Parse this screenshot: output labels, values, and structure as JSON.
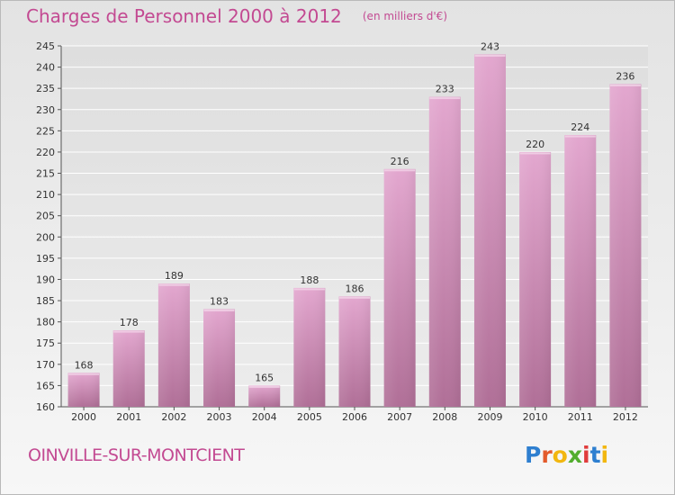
{
  "header": {
    "title": "Charges de Personnel 2000 à 2012",
    "subtitle": "(en milliers d'€)"
  },
  "footer": {
    "commune": "OINVILLE-SUR-MONTCIENT",
    "logo_text": "Proxiti",
    "logo_colors": [
      "#2e7fd0",
      "#e35a2b",
      "#f2b70f",
      "#52ad2e",
      "#e03c3c",
      "#2e7fd0",
      "#f2b70f"
    ]
  },
  "chart_data": {
    "type": "bar",
    "categories": [
      "2000",
      "2001",
      "2002",
      "2003",
      "2004",
      "2005",
      "2006",
      "2007",
      "2008",
      "2009",
      "2010",
      "2011",
      "2012"
    ],
    "values": [
      168,
      178,
      189,
      183,
      165,
      188,
      186,
      216,
      233,
      243,
      220,
      224,
      236
    ],
    "ylim": [
      160,
      245
    ],
    "yticks": [
      160,
      165,
      170,
      175,
      180,
      185,
      190,
      195,
      200,
      205,
      210,
      215,
      220,
      225,
      230,
      235,
      240,
      245
    ],
    "grid": true,
    "bar_color": "#c27aa6"
  }
}
